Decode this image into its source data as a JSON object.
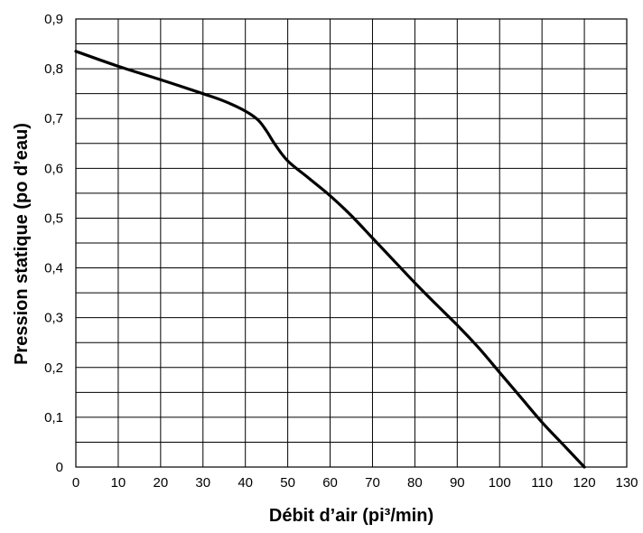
{
  "chart_data": {
    "type": "line",
    "title": "",
    "xlabel": "Débit d’air (pi³/min)",
    "ylabel": "Pression statique (po d’eau)",
    "xlim": [
      0,
      130
    ],
    "ylim": [
      0,
      0.9
    ],
    "x_ticks": [
      0,
      10,
      20,
      30,
      40,
      50,
      60,
      70,
      80,
      90,
      100,
      110,
      120,
      130
    ],
    "x_tick_labels": [
      "0",
      "10",
      "20",
      "30",
      "40",
      "50",
      "60",
      "70",
      "80",
      "90",
      "100",
      "110",
      "120",
      "130"
    ],
    "y_ticks": [
      0,
      0.1,
      0.2,
      0.3,
      0.4,
      0.5,
      0.6,
      0.7,
      0.8,
      0.9
    ],
    "y_tick_labels": [
      "0",
      "0,1",
      "0,2",
      "0,3",
      "0,4",
      "0,5",
      "0,6",
      "0,7",
      "0,8",
      "0,9"
    ],
    "grid": true,
    "x_grid_step": 10,
    "y_grid_step": 0.05,
    "series": [
      {
        "color": "#000000",
        "points": [
          [
            0,
            0.835
          ],
          [
            10,
            0.805
          ],
          [
            20,
            0.778
          ],
          [
            30,
            0.75
          ],
          [
            35,
            0.735
          ],
          [
            40,
            0.715
          ],
          [
            43,
            0.697
          ],
          [
            45,
            0.675
          ],
          [
            47,
            0.648
          ],
          [
            50,
            0.615
          ],
          [
            55,
            0.58
          ],
          [
            60,
            0.545
          ],
          [
            65,
            0.505
          ],
          [
            70,
            0.46
          ],
          [
            75,
            0.415
          ],
          [
            80,
            0.37
          ],
          [
            85,
            0.327
          ],
          [
            90,
            0.285
          ],
          [
            95,
            0.24
          ],
          [
            100,
            0.19
          ],
          [
            105,
            0.14
          ],
          [
            110,
            0.09
          ],
          [
            115,
            0.045
          ],
          [
            120,
            0.0
          ]
        ]
      }
    ]
  }
}
